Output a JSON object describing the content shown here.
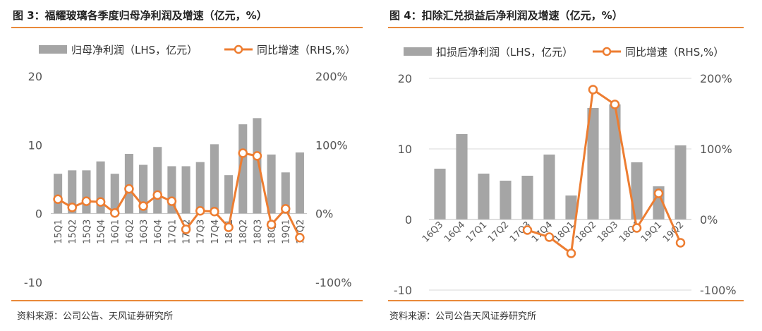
{
  "colors": {
    "bar": "#a5a5a5",
    "line": "#ed7d31",
    "rule": "#e9893a",
    "marker_fill": "#ffffff"
  },
  "chart_data": [
    {
      "type": "bar",
      "title": "图 3：福耀玻璃各季度归母净利润及增速（亿元，%）",
      "source": "资料来源：公司公告、天风证券研究所",
      "legend_position": "top",
      "categories": [
        "15Q1",
        "15Q2",
        "15Q3",
        "15Q4",
        "16Q1",
        "16Q2",
        "16Q3",
        "16Q4",
        "17Q1",
        "17Q2",
        "17Q3",
        "17Q4",
        "18Q1",
        "18Q2",
        "18Q3",
        "18Q4",
        "19Q1",
        "19Q2"
      ],
      "series": [
        {
          "name": "归母净利润（LHS，亿元）",
          "axis": "left",
          "type": "bar",
          "values": [
            5.8,
            6.3,
            6.3,
            7.6,
            5.8,
            8.7,
            7.1,
            9.7,
            6.9,
            6.9,
            7.5,
            10.1,
            5.6,
            13.0,
            13.9,
            8.6,
            6.0,
            8.9
          ]
        },
        {
          "name": "同比增速（RHS,%）",
          "axis": "right",
          "type": "line",
          "values": [
            21,
            9,
            18,
            17,
            1,
            36,
            11,
            27,
            18,
            -23,
            4,
            3,
            -20,
            88,
            84,
            -16,
            7,
            -35
          ]
        }
      ],
      "left_axis": {
        "ylim": [
          -10,
          20
        ],
        "ticks": [
          "-10",
          "0",
          "10",
          "20"
        ],
        "tick_values": [
          -10,
          0,
          10,
          20
        ]
      },
      "right_axis": {
        "ylim": [
          -100,
          200
        ],
        "ticks": [
          "-100%",
          "0%",
          "100%",
          "200%"
        ],
        "tick_values": [
          -100,
          0,
          100,
          200
        ]
      },
      "grid": false
    },
    {
      "type": "bar",
      "title": "图 4：扣除汇兑损益后净利润及增速（亿元，%）",
      "source": "资料来源：公司公告天风证券研究所",
      "legend_position": "top",
      "categories": [
        "16Q3",
        "16Q4",
        "17Q1",
        "17Q2",
        "17Q3",
        "17Q4",
        "18Q1",
        "18Q2",
        "18Q3",
        "18Q4",
        "19Q1",
        "19Q2"
      ],
      "series": [
        {
          "name": "扣损后净利润（LHS，亿元）",
          "axis": "left",
          "type": "bar",
          "values": [
            7.2,
            12.1,
            6.5,
            5.5,
            6.2,
            9.2,
            3.4,
            15.8,
            16.3,
            8.1,
            4.7,
            10.5
          ]
        },
        {
          "name": "同比增速（RHS,%）",
          "axis": "right",
          "type": "line",
          "values": [
            null,
            null,
            null,
            null,
            -15,
            -25,
            -48,
            184,
            163,
            -12,
            37,
            -33
          ]
        }
      ],
      "left_axis": {
        "ylim": [
          -10,
          20
        ],
        "ticks": [
          "-10",
          "0",
          "10",
          "20"
        ],
        "tick_values": [
          -10,
          0,
          10,
          20
        ]
      },
      "right_axis": {
        "ylim": [
          -100,
          200
        ],
        "ticks": [
          "-100%",
          "0%",
          "100%",
          "200%"
        ],
        "tick_values": [
          -100,
          0,
          100,
          200
        ]
      },
      "grid": true
    }
  ]
}
